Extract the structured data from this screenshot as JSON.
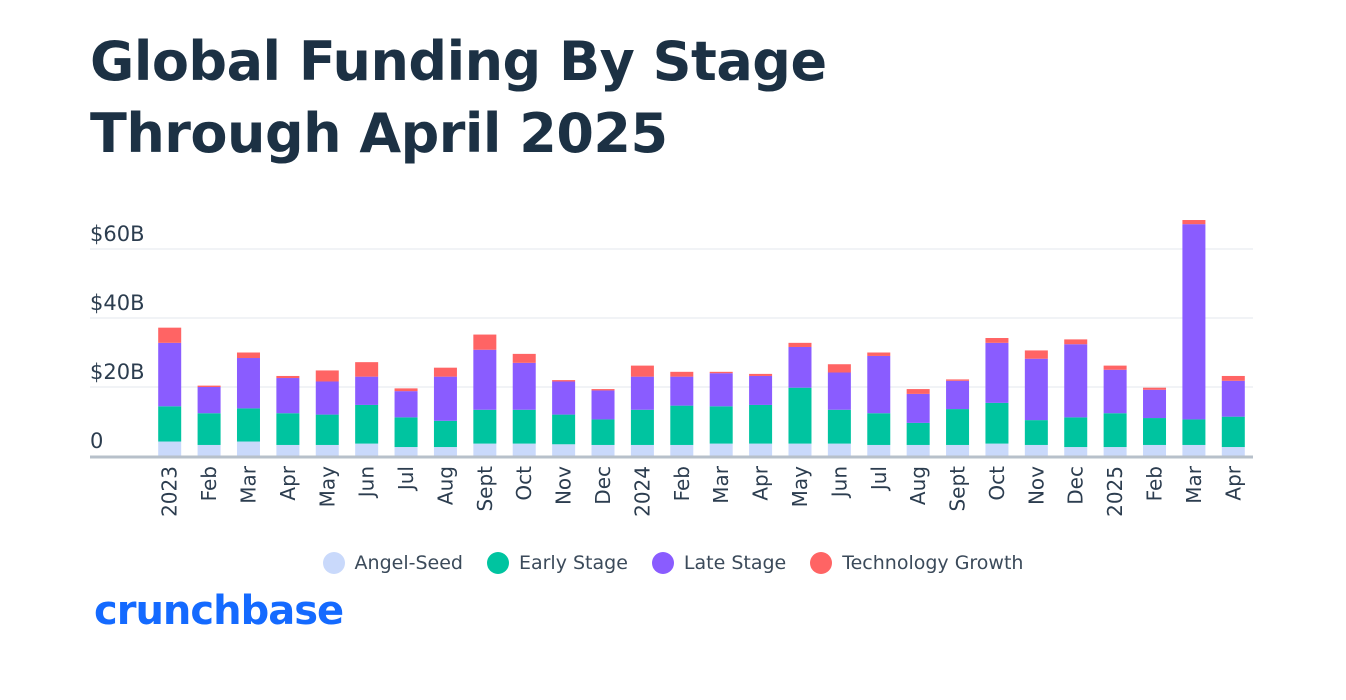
{
  "title": "Global Funding By Stage Through April 2025",
  "brand": {
    "name": "crunchbase",
    "color": "#146aff"
  },
  "chart_data": {
    "type": "bar",
    "stacked": true,
    "title": "Global Funding By Stage Through April 2025",
    "xlabel": "",
    "ylabel": "",
    "ylim": [
      0,
      70
    ],
    "yticks": [
      {
        "value": 0,
        "label": "0"
      },
      {
        "value": 20,
        "label": "$20B"
      },
      {
        "value": 40,
        "label": "$40B"
      },
      {
        "value": 60,
        "label": "$60B"
      }
    ],
    "grid": true,
    "legend_position": "bottom",
    "categories": [
      "2023",
      "Feb",
      "Mar",
      "Apr",
      "May",
      "Jun",
      "Jul",
      "Aug",
      "Sept",
      "Oct",
      "Nov",
      "Dec",
      "2024",
      "Feb",
      "Mar",
      "Apr",
      "May",
      "Jun",
      "Jul",
      "Aug",
      "Sept",
      "Oct",
      "Nov",
      "Dec",
      "2025",
      "Feb",
      "Mar",
      "Apr"
    ],
    "series": [
      {
        "name": "Angel-Seed",
        "color": "#c9d9fb",
        "values": [
          4.2,
          3.2,
          4.2,
          3.2,
          3.2,
          3.6,
          2.6,
          2.6,
          3.6,
          3.6,
          3.4,
          3.2,
          3.2,
          3.2,
          3.6,
          3.6,
          3.6,
          3.6,
          3.2,
          3.2,
          3.2,
          3.6,
          3.2,
          2.6,
          2.6,
          3.2,
          3.2,
          2.6
        ]
      },
      {
        "name": "Early Stage",
        "color": "#00c4a0",
        "values": [
          10.2,
          9.2,
          9.6,
          9.2,
          8.8,
          11.2,
          8.6,
          7.6,
          9.8,
          9.8,
          8.6,
          7.4,
          10.2,
          11.4,
          10.8,
          11.2,
          16.2,
          9.8,
          9.2,
          6.4,
          10.4,
          11.8,
          7.2,
          8.6,
          9.8,
          7.8,
          7.4,
          8.8
        ]
      },
      {
        "name": "Late Stage",
        "color": "#8a5cff",
        "values": [
          18.4,
          7.6,
          14.6,
          10.2,
          9.6,
          8.2,
          7.6,
          12.8,
          17.4,
          13.6,
          9.6,
          8.4,
          9.6,
          8.4,
          9.6,
          8.4,
          11.8,
          10.8,
          16.6,
          8.4,
          8.2,
          17.4,
          17.8,
          21.2,
          12.6,
          8.2,
          56.6,
          10.4
        ]
      },
      {
        "name": "Technology Growth",
        "color": "#ff6464",
        "values": [
          4.4,
          0.4,
          1.6,
          0.6,
          3.2,
          4.2,
          0.8,
          2.6,
          4.4,
          2.6,
          0.4,
          0.4,
          3.2,
          1.4,
          0.4,
          0.6,
          1.2,
          2.4,
          1.0,
          1.4,
          0.4,
          1.4,
          2.4,
          1.4,
          1.2,
          0.6,
          1.2,
          1.4
        ]
      }
    ]
  }
}
